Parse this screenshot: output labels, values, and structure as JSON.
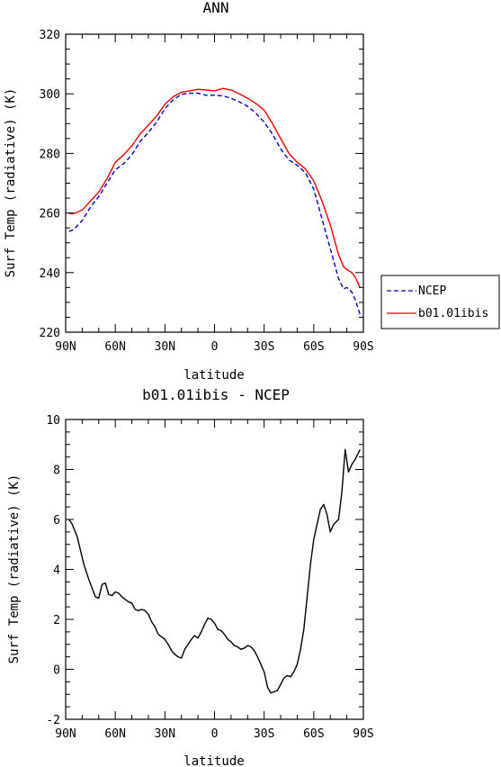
{
  "chart_data": [
    {
      "type": "line",
      "title": "ANN",
      "xlabel": "latitude",
      "ylabel": "Surf Temp (radiative) (K)",
      "xlim": [
        90,
        -90
      ],
      "ylim": [
        220,
        320
      ],
      "x_tick_values": [
        90,
        60,
        30,
        0,
        -30,
        -60,
        -90
      ],
      "x_tick_labels": [
        "90N",
        "60N",
        "30N",
        "0",
        "30S",
        "60S",
        "90S"
      ],
      "y_ticks": [
        220,
        240,
        260,
        280,
        300,
        320
      ],
      "legend": {
        "placement": "right",
        "entries": [
          "NCEP",
          "b01.01ibis"
        ]
      },
      "series": [
        {
          "name": "NCEP",
          "color": "#0000cc",
          "dash": "dashed",
          "x": [
            88,
            85,
            80,
            75,
            70,
            65,
            60,
            55,
            50,
            45,
            40,
            35,
            30,
            25,
            20,
            15,
            10,
            5,
            0,
            -5,
            -10,
            -15,
            -20,
            -25,
            -30,
            -35,
            -40,
            -45,
            -50,
            -55,
            -60,
            -65,
            -70,
            -75,
            -78,
            -80,
            -83,
            -85,
            -88
          ],
          "y": [
            253.8,
            254.5,
            257.5,
            262,
            265.5,
            270,
            274.5,
            276.5,
            279.5,
            284,
            287,
            290.5,
            295,
            298,
            299.8,
            300.2,
            300.2,
            299.5,
            299.5,
            299.3,
            298.5,
            297.3,
            295.8,
            293.5,
            290.5,
            286.5,
            281.5,
            277.8,
            276.0,
            273.5,
            268,
            258,
            248,
            238,
            234.5,
            235,
            233.5,
            231,
            226
          ]
        },
        {
          "name": "b01.01ibis",
          "color": "#ee0000",
          "dash": "solid",
          "x": [
            88,
            85,
            80,
            75,
            70,
            65,
            60,
            55,
            50,
            45,
            40,
            35,
            30,
            25,
            20,
            15,
            10,
            5,
            0,
            -5,
            -10,
            -15,
            -20,
            -25,
            -30,
            -35,
            -40,
            -45,
            -50,
            -55,
            -60,
            -65,
            -70,
            -75,
            -78,
            -80,
            -83,
            -85,
            -88
          ],
          "y": [
            259.8,
            259.8,
            261,
            264,
            267,
            271.5,
            277,
            279.5,
            282.5,
            286.5,
            289.5,
            292.5,
            296.5,
            299,
            300.5,
            301,
            301.5,
            301.3,
            301,
            301.8,
            301.3,
            300,
            298.5,
            296.8,
            294.5,
            290,
            285,
            280,
            277,
            274.8,
            270.8,
            264,
            256,
            246,
            242,
            241,
            240,
            238.5,
            235
          ]
        }
      ]
    },
    {
      "type": "line",
      "title": "b01.01ibis - NCEP",
      "xlabel": "latitude",
      "ylabel": "Surf Temp (radiative) (K)",
      "xlim": [
        90,
        -90
      ],
      "ylim": [
        -2,
        10
      ],
      "x_tick_values": [
        90,
        60,
        30,
        0,
        -30,
        -60,
        -90
      ],
      "x_tick_labels": [
        "90N",
        "60N",
        "30N",
        "0",
        "30S",
        "60S",
        "90S"
      ],
      "y_ticks": [
        -2,
        0,
        2,
        4,
        6,
        8,
        10
      ],
      "series": [
        {
          "color": "#000000",
          "x": [
            88,
            86,
            83,
            79,
            76,
            72,
            70,
            68,
            66,
            64,
            62,
            60,
            58,
            56,
            54,
            52,
            50,
            48,
            46,
            44,
            42,
            40,
            38,
            36,
            34,
            32,
            30,
            28,
            26,
            24,
            22,
            20,
            18,
            16,
            14,
            12,
            10,
            8,
            6,
            4,
            2,
            0,
            -2,
            -4,
            -6,
            -8,
            -10,
            -12,
            -14,
            -16,
            -18,
            -20,
            -22,
            -24,
            -26,
            -28,
            -30,
            -32,
            -34,
            -36,
            -38,
            -40,
            -42,
            -44,
            -46,
            -48,
            -50,
            -52,
            -54,
            -56,
            -58,
            -60,
            -62,
            -64,
            -66,
            -68,
            -70,
            -72,
            -75,
            -77,
            -79,
            -81,
            -83,
            -85,
            -88
          ],
          "y": [
            6.0,
            5.8,
            5.3,
            4.2,
            3.6,
            2.9,
            2.85,
            3.4,
            3.45,
            3.0,
            2.95,
            3.1,
            3.05,
            2.9,
            2.8,
            2.7,
            2.65,
            2.4,
            2.35,
            2.4,
            2.35,
            2.2,
            1.9,
            1.7,
            1.4,
            1.3,
            1.2,
            1.0,
            0.75,
            0.6,
            0.5,
            0.45,
            0.8,
            1.0,
            1.2,
            1.35,
            1.25,
            1.5,
            1.8,
            2.05,
            2.0,
            1.85,
            1.6,
            1.55,
            1.4,
            1.2,
            1.1,
            0.95,
            0.9,
            0.8,
            0.85,
            0.95,
            0.9,
            0.75,
            0.5,
            0.2,
            -0.1,
            -0.7,
            -0.95,
            -0.9,
            -0.85,
            -0.6,
            -0.35,
            -0.25,
            -0.3,
            -0.1,
            0.2,
            0.8,
            1.6,
            2.9,
            4.2,
            5.2,
            5.8,
            6.4,
            6.6,
            6.2,
            5.5,
            5.8,
            6.0,
            7.1,
            8.8,
            7.9,
            8.2,
            8.4,
            8.8
          ]
        }
      ]
    }
  ]
}
